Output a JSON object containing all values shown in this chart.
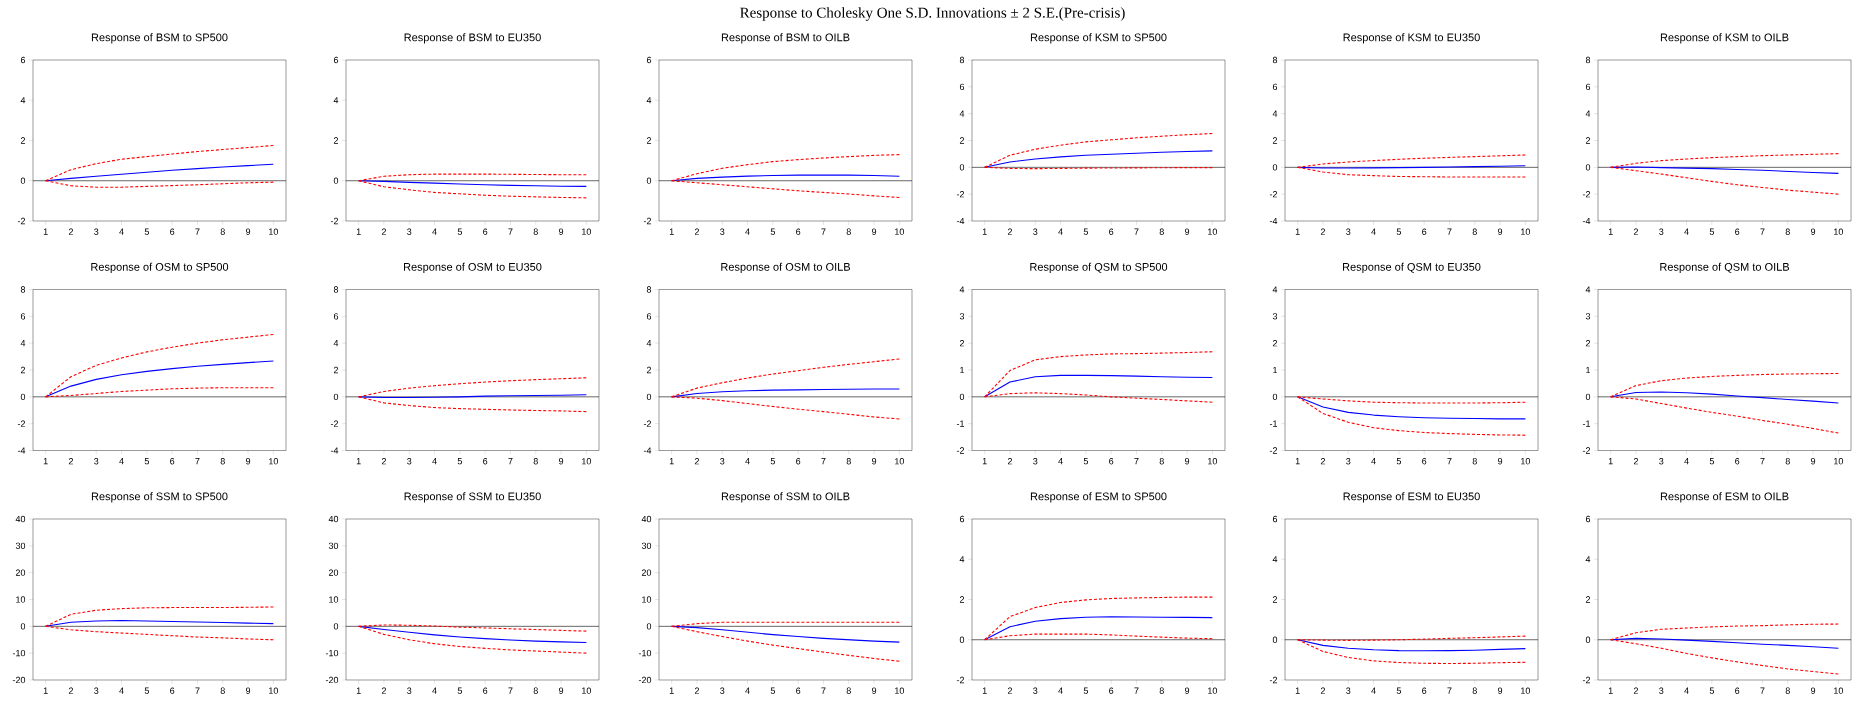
{
  "chart_data": [
    {
      "type": "line",
      "title": "Response of BSM to SP500",
      "annotations": [
        "Response to Cholesky One S.D. Innovations ± 2 S.E.(Pre-crisis)"
      ],
      "x": [
        1,
        2,
        3,
        4,
        5,
        6,
        7,
        8,
        9,
        10
      ],
      "xlim": [
        0.5,
        10.5
      ],
      "xticks": [
        1,
        2,
        3,
        4,
        5,
        6,
        7,
        8,
        9,
        10
      ],
      "ylim": [
        -2,
        6
      ],
      "yticks": [
        -2,
        0,
        2,
        4,
        6
      ],
      "ref_lines": [
        {
          "axis": "y",
          "value": 0,
          "color": "#000000"
        }
      ],
      "series": [
        {
          "color": "#0000ff",
          "line_style": "solid",
          "values": [
            0,
            0.12,
            0.22,
            0.32,
            0.42,
            0.52,
            0.6,
            0.68,
            0.75,
            0.82
          ]
        },
        {
          "color": "#ff0000",
          "line_style": "dashed",
          "values": [
            0,
            0.55,
            0.85,
            1.07,
            1.2,
            1.33,
            1.45,
            1.55,
            1.65,
            1.75
          ]
        },
        {
          "color": "#ff0000",
          "line_style": "dashed",
          "values": [
            0,
            -0.25,
            -0.32,
            -0.32,
            -0.28,
            -0.24,
            -0.2,
            -0.15,
            -0.1,
            -0.07
          ]
        }
      ]
    },
    {
      "type": "line",
      "title": "Response of BSM to EU350",
      "x": [
        1,
        2,
        3,
        4,
        5,
        6,
        7,
        8,
        9,
        10
      ],
      "xlim": [
        0.5,
        10.5
      ],
      "xticks": [
        1,
        2,
        3,
        4,
        5,
        6,
        7,
        8,
        9,
        10
      ],
      "ylim": [
        -2,
        6
      ],
      "yticks": [
        -2,
        0,
        2,
        4,
        6
      ],
      "ref_lines": [
        {
          "axis": "y",
          "value": 0,
          "color": "#000000"
        }
      ],
      "series": [
        {
          "color": "#0000ff",
          "line_style": "solid",
          "values": [
            0,
            -0.03,
            -0.08,
            -0.12,
            -0.16,
            -0.2,
            -0.23,
            -0.25,
            -0.27,
            -0.28
          ]
        },
        {
          "color": "#ff0000",
          "line_style": "dashed",
          "values": [
            0,
            0.22,
            0.3,
            0.33,
            0.33,
            0.33,
            0.32,
            0.31,
            0.3,
            0.3
          ]
        },
        {
          "color": "#ff0000",
          "line_style": "dashed",
          "values": [
            0,
            -0.3,
            -0.45,
            -0.58,
            -0.65,
            -0.72,
            -0.77,
            -0.8,
            -0.83,
            -0.85
          ]
        }
      ]
    },
    {
      "type": "line",
      "title": "Response of BSM to OILB",
      "x": [
        1,
        2,
        3,
        4,
        5,
        6,
        7,
        8,
        9,
        10
      ],
      "xlim": [
        0.5,
        10.5
      ],
      "xticks": [
        1,
        2,
        3,
        4,
        5,
        6,
        7,
        8,
        9,
        10
      ],
      "ylim": [
        -2,
        6
      ],
      "yticks": [
        -2,
        0,
        2,
        4,
        6
      ],
      "ref_lines": [
        {
          "axis": "y",
          "value": 0,
          "color": "#000000"
        }
      ],
      "series": [
        {
          "color": "#0000ff",
          "line_style": "solid",
          "values": [
            0,
            0.12,
            0.18,
            0.23,
            0.26,
            0.28,
            0.28,
            0.28,
            0.26,
            0.22
          ]
        },
        {
          "color": "#ff0000",
          "line_style": "dashed",
          "values": [
            0,
            0.35,
            0.62,
            0.8,
            0.95,
            1.05,
            1.13,
            1.2,
            1.26,
            1.3
          ]
        },
        {
          "color": "#ff0000",
          "line_style": "dashed",
          "values": [
            0,
            -0.1,
            -0.2,
            -0.3,
            -0.4,
            -0.5,
            -0.58,
            -0.66,
            -0.75,
            -0.83
          ]
        }
      ]
    },
    {
      "type": "line",
      "title": "Response of KSM to SP500",
      "x": [
        1,
        2,
        3,
        4,
        5,
        6,
        7,
        8,
        9,
        10
      ],
      "xlim": [
        0.5,
        10.5
      ],
      "xticks": [
        1,
        2,
        3,
        4,
        5,
        6,
        7,
        8,
        9,
        10
      ],
      "ylim": [
        -4,
        8
      ],
      "yticks": [
        -4,
        -2,
        0,
        2,
        4,
        6,
        8
      ],
      "ref_lines": [
        {
          "axis": "y",
          "value": 0,
          "color": "#000000"
        }
      ],
      "series": [
        {
          "color": "#0000ff",
          "line_style": "solid",
          "values": [
            0,
            0.4,
            0.62,
            0.78,
            0.9,
            0.98,
            1.05,
            1.12,
            1.18,
            1.23
          ]
        },
        {
          "color": "#ff0000",
          "line_style": "dashed",
          "values": [
            0,
            0.9,
            1.35,
            1.65,
            1.9,
            2.05,
            2.2,
            2.32,
            2.43,
            2.52
          ]
        },
        {
          "color": "#ff0000",
          "line_style": "dashed",
          "values": [
            0,
            -0.08,
            -0.1,
            -0.08,
            -0.06,
            -0.05,
            -0.04,
            -0.03,
            -0.02,
            -0.02
          ]
        }
      ]
    },
    {
      "type": "line",
      "title": "Response of KSM to EU350",
      "x": [
        1,
        2,
        3,
        4,
        5,
        6,
        7,
        8,
        9,
        10
      ],
      "xlim": [
        0.5,
        10.5
      ],
      "xticks": [
        1,
        2,
        3,
        4,
        5,
        6,
        7,
        8,
        9,
        10
      ],
      "ylim": [
        -4,
        8
      ],
      "yticks": [
        -4,
        -2,
        0,
        2,
        4,
        6,
        8
      ],
      "ref_lines": [
        {
          "axis": "y",
          "value": 0,
          "color": "#000000"
        }
      ],
      "series": [
        {
          "color": "#0000ff",
          "line_style": "solid",
          "values": [
            0,
            -0.05,
            -0.05,
            -0.04,
            -0.02,
            0,
            0.03,
            0.05,
            0.08,
            0.12
          ]
        },
        {
          "color": "#ff0000",
          "line_style": "dashed",
          "values": [
            0,
            0.25,
            0.4,
            0.5,
            0.6,
            0.68,
            0.74,
            0.8,
            0.86,
            0.92
          ]
        },
        {
          "color": "#ff0000",
          "line_style": "dashed",
          "values": [
            0,
            -0.35,
            -0.55,
            -0.62,
            -0.68,
            -0.7,
            -0.72,
            -0.72,
            -0.72,
            -0.72
          ]
        }
      ]
    },
    {
      "type": "line",
      "title": "Response of KSM to OILB",
      "x": [
        1,
        2,
        3,
        4,
        5,
        6,
        7,
        8,
        9,
        10
      ],
      "xlim": [
        0.5,
        10.5
      ],
      "xticks": [
        1,
        2,
        3,
        4,
        5,
        6,
        7,
        8,
        9,
        10
      ],
      "ylim": [
        -4,
        8
      ],
      "yticks": [
        -4,
        -2,
        0,
        2,
        4,
        6,
        8
      ],
      "ref_lines": [
        {
          "axis": "y",
          "value": 0,
          "color": "#000000"
        }
      ],
      "series": [
        {
          "color": "#0000ff",
          "line_style": "solid",
          "values": [
            0,
            0.02,
            -0.02,
            -0.06,
            -0.1,
            -0.16,
            -0.22,
            -0.3,
            -0.38,
            -0.45
          ]
        },
        {
          "color": "#ff0000",
          "line_style": "dashed",
          "values": [
            0,
            0.3,
            0.5,
            0.62,
            0.72,
            0.8,
            0.87,
            0.92,
            0.97,
            1.02
          ]
        },
        {
          "color": "#ff0000",
          "line_style": "dashed",
          "values": [
            0,
            -0.25,
            -0.5,
            -0.78,
            -1.05,
            -1.3,
            -1.5,
            -1.7,
            -1.85,
            -2.0
          ]
        }
      ]
    },
    {
      "type": "line",
      "title": "Response of OSM to SP500",
      "x": [
        1,
        2,
        3,
        4,
        5,
        6,
        7,
        8,
        9,
        10
      ],
      "xlim": [
        0.5,
        10.5
      ],
      "xticks": [
        1,
        2,
        3,
        4,
        5,
        6,
        7,
        8,
        9,
        10
      ],
      "ylim": [
        -4,
        8
      ],
      "yticks": [
        -4,
        -2,
        0,
        2,
        4,
        6,
        8
      ],
      "ref_lines": [
        {
          "axis": "y",
          "value": 0,
          "color": "#000000"
        }
      ],
      "series": [
        {
          "color": "#0000ff",
          "line_style": "solid",
          "values": [
            0,
            0.8,
            1.3,
            1.65,
            1.9,
            2.1,
            2.28,
            2.42,
            2.55,
            2.67
          ]
        },
        {
          "color": "#ff0000",
          "line_style": "dashed",
          "values": [
            0,
            1.5,
            2.35,
            2.9,
            3.35,
            3.7,
            4.0,
            4.25,
            4.45,
            4.65
          ]
        },
        {
          "color": "#ff0000",
          "line_style": "dashed",
          "values": [
            0,
            0.1,
            0.25,
            0.4,
            0.5,
            0.6,
            0.65,
            0.68,
            0.68,
            0.68
          ]
        }
      ]
    },
    {
      "type": "line",
      "title": "Response of OSM to EU350",
      "x": [
        1,
        2,
        3,
        4,
        5,
        6,
        7,
        8,
        9,
        10
      ],
      "xlim": [
        0.5,
        10.5
      ],
      "xticks": [
        1,
        2,
        3,
        4,
        5,
        6,
        7,
        8,
        9,
        10
      ],
      "ylim": [
        -4,
        8
      ],
      "yticks": [
        -4,
        -2,
        0,
        2,
        4,
        6,
        8
      ],
      "ref_lines": [
        {
          "axis": "y",
          "value": 0,
          "color": "#000000"
        }
      ],
      "series": [
        {
          "color": "#0000ff",
          "line_style": "solid",
          "values": [
            0,
            -0.05,
            -0.05,
            -0.03,
            0,
            0.05,
            0.08,
            0.1,
            0.12,
            0.15
          ]
        },
        {
          "color": "#ff0000",
          "line_style": "dashed",
          "values": [
            0,
            0.4,
            0.65,
            0.83,
            0.98,
            1.1,
            1.2,
            1.28,
            1.35,
            1.42
          ]
        },
        {
          "color": "#ff0000",
          "line_style": "dashed",
          "values": [
            0,
            -0.45,
            -0.65,
            -0.8,
            -0.88,
            -0.93,
            -0.98,
            -1.02,
            -1.05,
            -1.1
          ]
        }
      ]
    },
    {
      "type": "line",
      "title": "Response of OSM to OILB",
      "x": [
        1,
        2,
        3,
        4,
        5,
        6,
        7,
        8,
        9,
        10
      ],
      "xlim": [
        0.5,
        10.5
      ],
      "xticks": [
        1,
        2,
        3,
        4,
        5,
        6,
        7,
        8,
        9,
        10
      ],
      "ylim": [
        -4,
        8
      ],
      "yticks": [
        -4,
        -2,
        0,
        2,
        4,
        6,
        8
      ],
      "ref_lines": [
        {
          "axis": "y",
          "value": 0,
          "color": "#000000"
        }
      ],
      "series": [
        {
          "color": "#0000ff",
          "line_style": "solid",
          "values": [
            0,
            0.25,
            0.38,
            0.45,
            0.5,
            0.52,
            0.55,
            0.57,
            0.58,
            0.58
          ]
        },
        {
          "color": "#ff0000",
          "line_style": "dashed",
          "values": [
            0,
            0.65,
            1.05,
            1.4,
            1.7,
            1.95,
            2.2,
            2.42,
            2.62,
            2.82
          ]
        },
        {
          "color": "#ff0000",
          "line_style": "dashed",
          "values": [
            0,
            -0.1,
            -0.28,
            -0.5,
            -0.72,
            -0.92,
            -1.1,
            -1.3,
            -1.5,
            -1.65
          ]
        }
      ]
    },
    {
      "type": "line",
      "title": "Response of QSM to SP500",
      "x": [
        1,
        2,
        3,
        4,
        5,
        6,
        7,
        8,
        9,
        10
      ],
      "xlim": [
        0.5,
        10.5
      ],
      "xticks": [
        1,
        2,
        3,
        4,
        5,
        6,
        7,
        8,
        9,
        10
      ],
      "ylim": [
        -2,
        4
      ],
      "yticks": [
        -2,
        -1,
        0,
        1,
        2,
        3,
        4
      ],
      "ref_lines": [
        {
          "axis": "y",
          "value": 0,
          "color": "#000000"
        }
      ],
      "series": [
        {
          "color": "#0000ff",
          "line_style": "solid",
          "values": [
            0,
            0.55,
            0.75,
            0.8,
            0.8,
            0.79,
            0.77,
            0.75,
            0.73,
            0.72
          ]
        },
        {
          "color": "#ff0000",
          "line_style": "dashed",
          "values": [
            0,
            0.98,
            1.38,
            1.5,
            1.56,
            1.6,
            1.61,
            1.63,
            1.65,
            1.68
          ]
        },
        {
          "color": "#ff0000",
          "line_style": "dashed",
          "values": [
            0,
            0.12,
            0.15,
            0.12,
            0.07,
            0.0,
            -0.05,
            -0.1,
            -0.15,
            -0.2
          ]
        }
      ]
    },
    {
      "type": "line",
      "title": "Response of QSM to EU350",
      "x": [
        1,
        2,
        3,
        4,
        5,
        6,
        7,
        8,
        9,
        10
      ],
      "xlim": [
        0.5,
        10.5
      ],
      "xticks": [
        1,
        2,
        3,
        4,
        5,
        6,
        7,
        8,
        9,
        10
      ],
      "ylim": [
        -2,
        4
      ],
      "yticks": [
        -2,
        -1,
        0,
        1,
        2,
        3,
        4
      ],
      "ref_lines": [
        {
          "axis": "y",
          "value": 0,
          "color": "#000000"
        }
      ],
      "series": [
        {
          "color": "#0000ff",
          "line_style": "solid",
          "values": [
            0,
            -0.38,
            -0.58,
            -0.68,
            -0.74,
            -0.78,
            -0.8,
            -0.81,
            -0.82,
            -0.82
          ]
        },
        {
          "color": "#ff0000",
          "line_style": "dashed",
          "values": [
            0,
            -0.08,
            -0.15,
            -0.2,
            -0.22,
            -0.23,
            -0.23,
            -0.23,
            -0.22,
            -0.2
          ]
        },
        {
          "color": "#ff0000",
          "line_style": "dashed",
          "values": [
            0,
            -0.62,
            -0.95,
            -1.15,
            -1.26,
            -1.33,
            -1.37,
            -1.4,
            -1.42,
            -1.43
          ]
        }
      ]
    },
    {
      "type": "line",
      "title": "Response of QSM to OILB",
      "x": [
        1,
        2,
        3,
        4,
        5,
        6,
        7,
        8,
        9,
        10
      ],
      "xlim": [
        0.5,
        10.5
      ],
      "xticks": [
        1,
        2,
        3,
        4,
        5,
        6,
        7,
        8,
        9,
        10
      ],
      "ylim": [
        -2,
        4
      ],
      "yticks": [
        -2,
        -1,
        0,
        1,
        2,
        3,
        4
      ],
      "ref_lines": [
        {
          "axis": "y",
          "value": 0,
          "color": "#000000"
        }
      ],
      "series": [
        {
          "color": "#0000ff",
          "line_style": "solid",
          "values": [
            0,
            0.16,
            0.18,
            0.15,
            0.1,
            0.03,
            -0.03,
            -0.1,
            -0.16,
            -0.23
          ]
        },
        {
          "color": "#ff0000",
          "line_style": "dashed",
          "values": [
            0,
            0.42,
            0.6,
            0.7,
            0.76,
            0.8,
            0.83,
            0.85,
            0.86,
            0.87
          ]
        },
        {
          "color": "#ff0000",
          "line_style": "dashed",
          "values": [
            0,
            -0.08,
            -0.25,
            -0.42,
            -0.58,
            -0.72,
            -0.88,
            -1.02,
            -1.18,
            -1.35
          ]
        }
      ]
    },
    {
      "type": "line",
      "title": "Response of SSM to SP500",
      "x": [
        1,
        2,
        3,
        4,
        5,
        6,
        7,
        8,
        9,
        10
      ],
      "xlim": [
        0.5,
        10.5
      ],
      "xticks": [
        1,
        2,
        3,
        4,
        5,
        6,
        7,
        8,
        9,
        10
      ],
      "ylim": [
        -20,
        40
      ],
      "yticks": [
        -20,
        -10,
        0,
        10,
        20,
        30,
        40
      ],
      "ref_lines": [
        {
          "axis": "y",
          "value": 0,
          "color": "#000000"
        }
      ],
      "series": [
        {
          "color": "#0000ff",
          "line_style": "solid",
          "values": [
            0,
            1.5,
            2,
            2.2,
            2,
            1.8,
            1.6,
            1.4,
            1.2,
            1.0
          ]
        },
        {
          "color": "#ff0000",
          "line_style": "dashed",
          "values": [
            0,
            4.5,
            6,
            6.6,
            6.9,
            7,
            7,
            7,
            7.1,
            7.2
          ]
        },
        {
          "color": "#ff0000",
          "line_style": "dashed",
          "values": [
            0,
            -1.3,
            -2,
            -2.5,
            -3,
            -3.5,
            -4,
            -4.3,
            -4.7,
            -5
          ]
        }
      ]
    },
    {
      "type": "line",
      "title": "Response of SSM to EU350",
      "x": [
        1,
        2,
        3,
        4,
        5,
        6,
        7,
        8,
        9,
        10
      ],
      "xlim": [
        0.5,
        10.5
      ],
      "xticks": [
        1,
        2,
        3,
        4,
        5,
        6,
        7,
        8,
        9,
        10
      ],
      "ylim": [
        -20,
        40
      ],
      "yticks": [
        -20,
        -10,
        0,
        10,
        20,
        30,
        40
      ],
      "ref_lines": [
        {
          "axis": "y",
          "value": 0,
          "color": "#000000"
        }
      ],
      "series": [
        {
          "color": "#0000ff",
          "line_style": "solid",
          "values": [
            0,
            -1.2,
            -2.2,
            -3.2,
            -4,
            -4.6,
            -5.1,
            -5.5,
            -5.8,
            -6
          ]
        },
        {
          "color": "#ff0000",
          "line_style": "dashed",
          "values": [
            0,
            0.5,
            0.4,
            0.1,
            -0.3,
            -0.6,
            -0.9,
            -1.2,
            -1.5,
            -1.8
          ]
        },
        {
          "color": "#ff0000",
          "line_style": "dashed",
          "values": [
            0,
            -3,
            -5,
            -6.5,
            -7.5,
            -8.2,
            -8.8,
            -9.2,
            -9.6,
            -10
          ]
        }
      ]
    },
    {
      "type": "line",
      "title": "Response of SSM to OILB",
      "x": [
        1,
        2,
        3,
        4,
        5,
        6,
        7,
        8,
        9,
        10
      ],
      "xlim": [
        0.5,
        10.5
      ],
      "xticks": [
        1,
        2,
        3,
        4,
        5,
        6,
        7,
        8,
        9,
        10
      ],
      "ylim": [
        -20,
        40
      ],
      "yticks": [
        -20,
        -10,
        0,
        10,
        20,
        30,
        40
      ],
      "ref_lines": [
        {
          "axis": "y",
          "value": 0,
          "color": "#000000"
        }
      ],
      "series": [
        {
          "color": "#0000ff",
          "line_style": "solid",
          "values": [
            0,
            -0.5,
            -1.3,
            -2.2,
            -3.1,
            -3.8,
            -4.5,
            -5,
            -5.5,
            -5.9
          ]
        },
        {
          "color": "#ff0000",
          "line_style": "dashed",
          "values": [
            0,
            1.0,
            1.5,
            1.5,
            1.5,
            1.5,
            1.5,
            1.5,
            1.5,
            1.5
          ]
        },
        {
          "color": "#ff0000",
          "line_style": "dashed",
          "values": [
            0,
            -2,
            -3.8,
            -5.5,
            -7,
            -8.3,
            -9.6,
            -10.8,
            -12,
            -13
          ]
        }
      ]
    },
    {
      "type": "line",
      "title": "Response of ESM to SP500",
      "x": [
        1,
        2,
        3,
        4,
        5,
        6,
        7,
        8,
        9,
        10
      ],
      "xlim": [
        0.5,
        10.5
      ],
      "xticks": [
        1,
        2,
        3,
        4,
        5,
        6,
        7,
        8,
        9,
        10
      ],
      "ylim": [
        -2,
        6
      ],
      "yticks": [
        -2,
        0,
        2,
        4,
        6
      ],
      "ref_lines": [
        {
          "axis": "y",
          "value": 0,
          "color": "#000000"
        }
      ],
      "series": [
        {
          "color": "#0000ff",
          "line_style": "solid",
          "values": [
            0,
            0.65,
            0.92,
            1.05,
            1.12,
            1.14,
            1.13,
            1.12,
            1.11,
            1.1
          ]
        },
        {
          "color": "#ff0000",
          "line_style": "dashed",
          "values": [
            0,
            1.15,
            1.6,
            1.85,
            1.98,
            2.05,
            2.08,
            2.1,
            2.12,
            2.12
          ]
        },
        {
          "color": "#ff0000",
          "line_style": "dashed",
          "values": [
            0,
            0.2,
            0.28,
            0.28,
            0.28,
            0.24,
            0.18,
            0.13,
            0.08,
            0.05
          ]
        }
      ]
    },
    {
      "type": "line",
      "title": "Response of ESM to EU350",
      "x": [
        1,
        2,
        3,
        4,
        5,
        6,
        7,
        8,
        9,
        10
      ],
      "xlim": [
        0.5,
        10.5
      ],
      "xticks": [
        1,
        2,
        3,
        4,
        5,
        6,
        7,
        8,
        9,
        10
      ],
      "ylim": [
        -2,
        6
      ],
      "yticks": [
        -2,
        0,
        2,
        4,
        6
      ],
      "ref_lines": [
        {
          "axis": "y",
          "value": 0,
          "color": "#000000"
        }
      ],
      "series": [
        {
          "color": "#0000ff",
          "line_style": "solid",
          "values": [
            0,
            -0.28,
            -0.42,
            -0.5,
            -0.54,
            -0.55,
            -0.54,
            -0.52,
            -0.48,
            -0.44
          ]
        },
        {
          "color": "#ff0000",
          "line_style": "dashed",
          "values": [
            0,
            -0.02,
            -0.03,
            -0.02,
            0,
            0.03,
            0.07,
            0.1,
            0.14,
            0.18
          ]
        },
        {
          "color": "#ff0000",
          "line_style": "dashed",
          "values": [
            0,
            -0.58,
            -0.88,
            -1.05,
            -1.13,
            -1.17,
            -1.18,
            -1.17,
            -1.14,
            -1.12
          ]
        }
      ]
    },
    {
      "type": "line",
      "title": "Response of ESM to OILB",
      "x": [
        1,
        2,
        3,
        4,
        5,
        6,
        7,
        8,
        9,
        10
      ],
      "xlim": [
        0.5,
        10.5
      ],
      "xticks": [
        1,
        2,
        3,
        4,
        5,
        6,
        7,
        8,
        9,
        10
      ],
      "ylim": [
        -2,
        6
      ],
      "yticks": [
        -2,
        0,
        2,
        4,
        6
      ],
      "ref_lines": [
        {
          "axis": "y",
          "value": 0,
          "color": "#000000"
        }
      ],
      "series": [
        {
          "color": "#0000ff",
          "line_style": "solid",
          "values": [
            0,
            0.07,
            0.04,
            -0.02,
            -0.08,
            -0.15,
            -0.22,
            -0.28,
            -0.35,
            -0.42
          ]
        },
        {
          "color": "#ff0000",
          "line_style": "dashed",
          "values": [
            0,
            0.35,
            0.52,
            0.58,
            0.64,
            0.68,
            0.7,
            0.74,
            0.77,
            0.78
          ]
        },
        {
          "color": "#ff0000",
          "line_style": "dashed",
          "values": [
            0,
            -0.2,
            -0.42,
            -0.68,
            -0.9,
            -1.1,
            -1.28,
            -1.45,
            -1.58,
            -1.7
          ]
        }
      ]
    }
  ]
}
